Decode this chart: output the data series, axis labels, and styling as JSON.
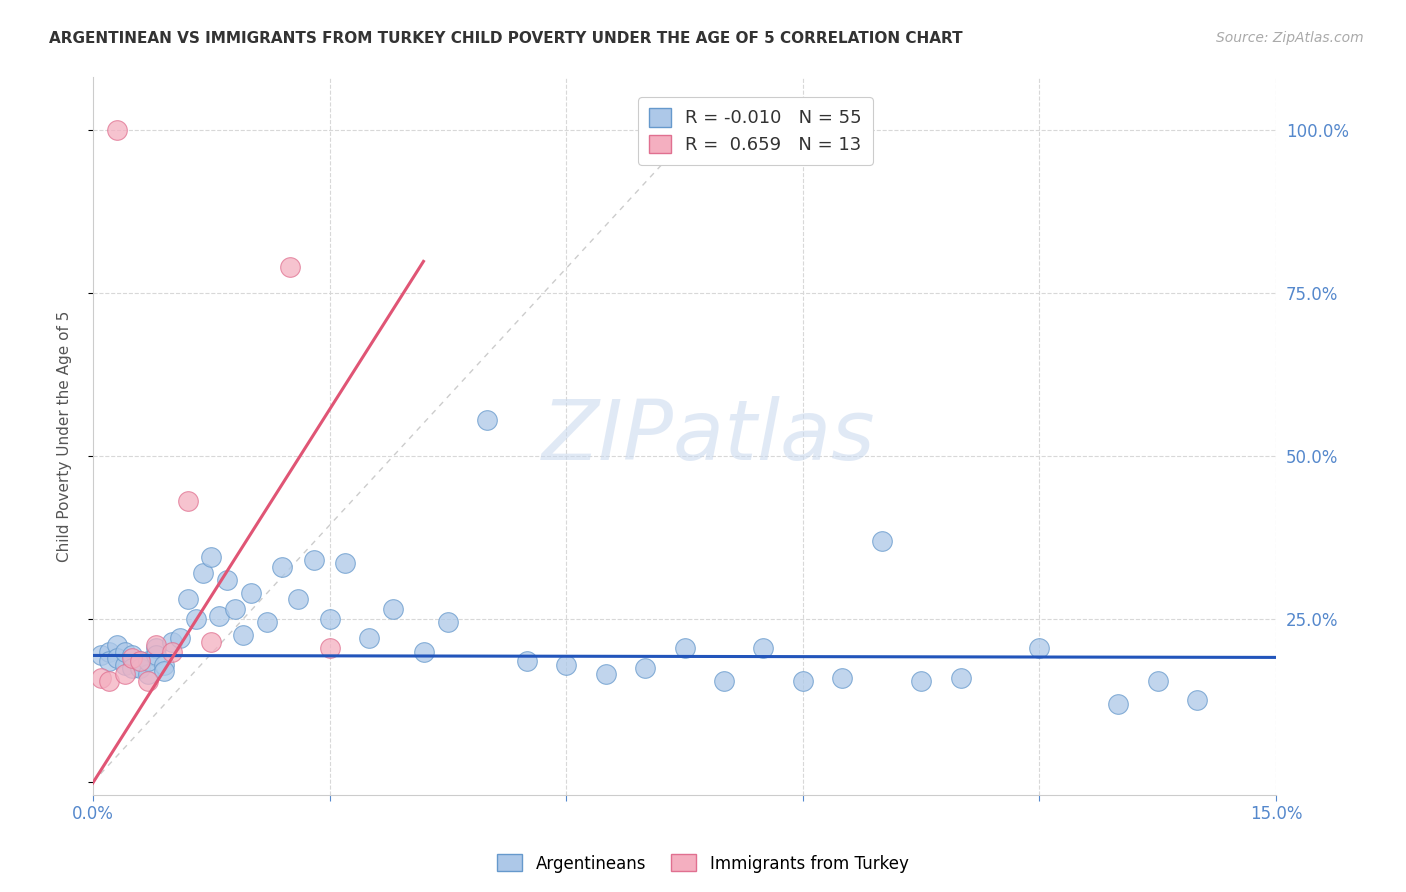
{
  "title": "ARGENTINEAN VS IMMIGRANTS FROM TURKEY CHILD POVERTY UNDER THE AGE OF 5 CORRELATION CHART",
  "source": "Source: ZipAtlas.com",
  "ylabel": "Child Poverty Under the Age of 5",
  "xlim": [
    0.0,
    0.15
  ],
  "ylim": [
    -0.02,
    1.08
  ],
  "argentinean_R": -0.01,
  "argentinean_N": 55,
  "turkey_R": 0.659,
  "turkey_N": 13,
  "argentina_color": "#adc8e8",
  "argentina_edge_color": "#6699cc",
  "turkey_color": "#f4afc0",
  "turkey_edge_color": "#e07090",
  "argentina_line_color": "#2255bb",
  "turkey_line_color": "#e05575",
  "diagonal_color": "#cccccc",
  "watermark": "ZIPatlas",
  "background_color": "#ffffff",
  "grid_color": "#d8d8d8",
  "arg_x": [
    0.001,
    0.002,
    0.002,
    0.003,
    0.003,
    0.004,
    0.004,
    0.005,
    0.005,
    0.006,
    0.006,
    0.007,
    0.007,
    0.008,
    0.008,
    0.009,
    0.009,
    0.01,
    0.011,
    0.012,
    0.013,
    0.014,
    0.015,
    0.016,
    0.017,
    0.018,
    0.019,
    0.02,
    0.022,
    0.024,
    0.026,
    0.028,
    0.03,
    0.032,
    0.035,
    0.038,
    0.042,
    0.045,
    0.05,
    0.055,
    0.06,
    0.065,
    0.07,
    0.075,
    0.08,
    0.085,
    0.09,
    0.095,
    0.1,
    0.105,
    0.11,
    0.12,
    0.13,
    0.135,
    0.14
  ],
  "arg_y": [
    0.195,
    0.2,
    0.185,
    0.21,
    0.19,
    0.18,
    0.2,
    0.195,
    0.175,
    0.185,
    0.175,
    0.165,
    0.185,
    0.205,
    0.195,
    0.18,
    0.17,
    0.215,
    0.22,
    0.28,
    0.25,
    0.32,
    0.345,
    0.255,
    0.31,
    0.265,
    0.225,
    0.29,
    0.245,
    0.33,
    0.28,
    0.34,
    0.25,
    0.335,
    0.22,
    0.265,
    0.2,
    0.245,
    0.555,
    0.185,
    0.18,
    0.165,
    0.175,
    0.205,
    0.155,
    0.205,
    0.155,
    0.16,
    0.37,
    0.155,
    0.16,
    0.205,
    0.12,
    0.155,
    0.125
  ],
  "turk_x": [
    0.001,
    0.002,
    0.003,
    0.004,
    0.005,
    0.006,
    0.007,
    0.008,
    0.01,
    0.012,
    0.015,
    0.025,
    0.03
  ],
  "turk_y": [
    0.16,
    0.155,
    1.0,
    0.165,
    0.19,
    0.185,
    0.155,
    0.21,
    0.2,
    0.43,
    0.215,
    0.79,
    0.205
  ],
  "arg_line_x": [
    0.0,
    0.15
  ],
  "arg_line_y": [
    0.194,
    0.191
  ],
  "turk_line_x0": -0.001,
  "turk_line_x1": 0.042,
  "turk_line_y0": -0.02,
  "turk_line_y1": 0.8
}
